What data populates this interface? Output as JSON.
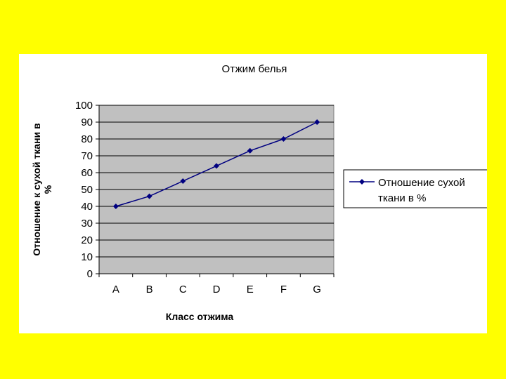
{
  "chart_data": {
    "type": "line",
    "title": "Отжим белья",
    "xlabel": "Класс отжима",
    "ylabel_lines": [
      "Отношение к сухой ткани в",
      "%"
    ],
    "categories": [
      "A",
      "B",
      "C",
      "D",
      "E",
      "F",
      "G"
    ],
    "series": [
      {
        "name": "Отношение сухой ткани в %",
        "name_lines": [
          "Отношение сухой",
          "ткани в %"
        ],
        "values": [
          40,
          46,
          55,
          64,
          73,
          80,
          90
        ],
        "color": "#000080"
      }
    ],
    "ylim": [
      0,
      100
    ],
    "yticks": [
      0,
      10,
      20,
      30,
      40,
      50,
      60,
      70,
      80,
      90,
      100
    ],
    "grid": true,
    "plot_background": "#c0c0c0",
    "legend_position": "right"
  }
}
